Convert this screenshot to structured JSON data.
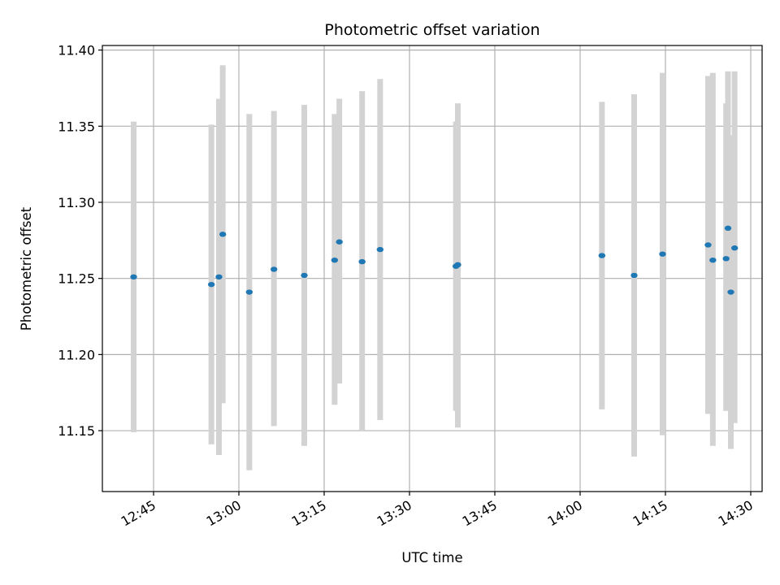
{
  "chart_data": {
    "type": "scatter",
    "title": "Photometric offset variation",
    "xlabel": "UTC time",
    "ylabel": "Photometric offset",
    "xlim": [
      "12:36",
      "14:32"
    ],
    "ylim": [
      11.11,
      11.403
    ],
    "x_ticks": [
      "12:45",
      "13:00",
      "13:15",
      "13:30",
      "13:45",
      "14:00",
      "14:15",
      "14:30"
    ],
    "y_ticks": [
      "11.15",
      "11.20",
      "11.25",
      "11.30",
      "11.35",
      "11.40"
    ],
    "grid": true,
    "marker_color": "#1f77b4",
    "errorbar_color": "#d3d3d3",
    "points": [
      {
        "x": "12:41:30",
        "y": 11.251,
        "ylo": 11.149,
        "yhi": 11.353
      },
      {
        "x": "12:55:10",
        "y": 11.246,
        "ylo": 11.141,
        "yhi": 11.351
      },
      {
        "x": "12:56:30",
        "y": 11.251,
        "ylo": 11.134,
        "yhi": 11.368
      },
      {
        "x": "12:57:10",
        "y": 11.279,
        "ylo": 11.168,
        "yhi": 11.39
      },
      {
        "x": "13:01:50",
        "y": 11.241,
        "ylo": 11.124,
        "yhi": 11.358
      },
      {
        "x": "13:06:10",
        "y": 11.256,
        "ylo": 11.153,
        "yhi": 11.36
      },
      {
        "x": "13:11:30",
        "y": 11.252,
        "ylo": 11.14,
        "yhi": 11.364
      },
      {
        "x": "13:16:50",
        "y": 11.262,
        "ylo": 11.167,
        "yhi": 11.358
      },
      {
        "x": "13:17:40",
        "y": 11.274,
        "ylo": 11.181,
        "yhi": 11.368
      },
      {
        "x": "13:21:40",
        "y": 11.261,
        "ylo": 11.15,
        "yhi": 11.373
      },
      {
        "x": "13:24:50",
        "y": 11.269,
        "ylo": 11.157,
        "yhi": 11.381
      },
      {
        "x": "13:38:10",
        "y": 11.258,
        "ylo": 11.163,
        "yhi": 11.353
      },
      {
        "x": "13:38:30",
        "y": 11.259,
        "ylo": 11.152,
        "yhi": 11.365
      },
      {
        "x": "14:03:50",
        "y": 11.265,
        "ylo": 11.164,
        "yhi": 11.366
      },
      {
        "x": "14:09:30",
        "y": 11.252,
        "ylo": 11.133,
        "yhi": 11.371
      },
      {
        "x": "14:14:30",
        "y": 11.266,
        "ylo": 11.147,
        "yhi": 11.385
      },
      {
        "x": "14:22:30",
        "y": 11.272,
        "ylo": 11.161,
        "yhi": 11.383
      },
      {
        "x": "14:23:20",
        "y": 11.262,
        "ylo": 11.14,
        "yhi": 11.385
      },
      {
        "x": "14:25:40",
        "y": 11.263,
        "ylo": 11.163,
        "yhi": 11.365
      },
      {
        "x": "14:26:00",
        "y": 11.283,
        "ylo": 11.18,
        "yhi": 11.386
      },
      {
        "x": "14:26:30",
        "y": 11.241,
        "ylo": 11.138,
        "yhi": 11.344
      },
      {
        "x": "14:27:10",
        "y": 11.27,
        "ylo": 11.155,
        "yhi": 11.386
      }
    ]
  }
}
